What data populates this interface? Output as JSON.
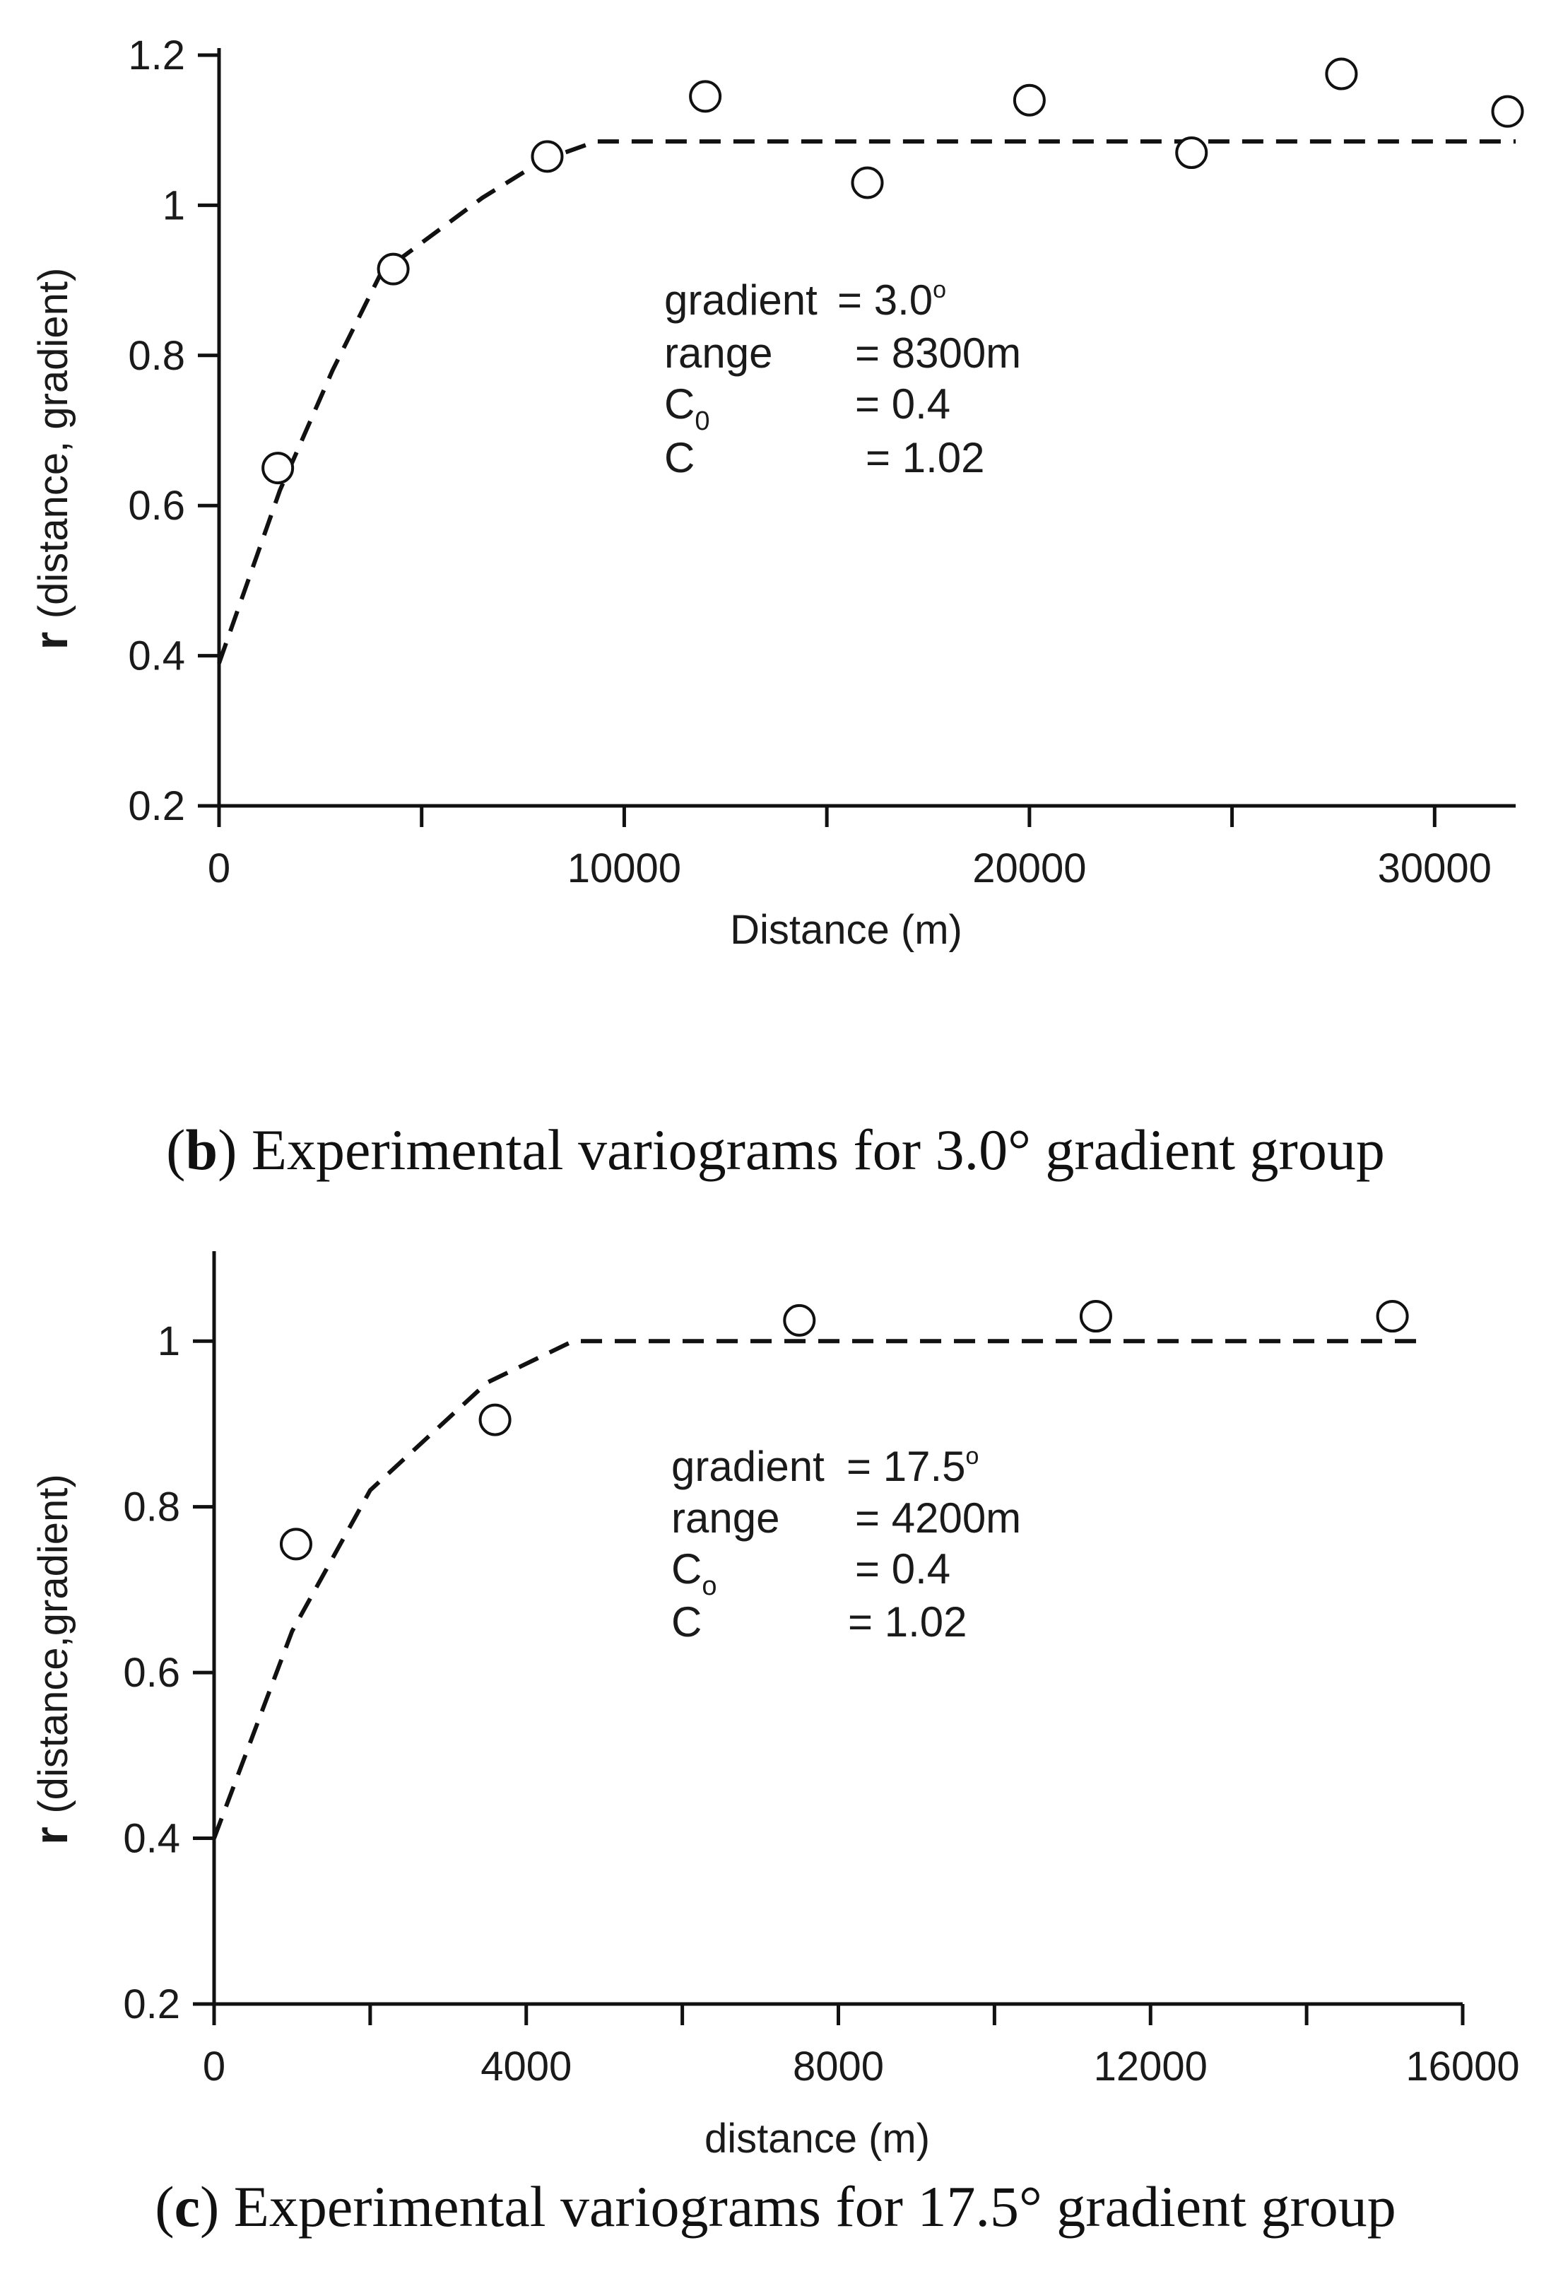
{
  "chart_data": [
    {
      "type": "scatter",
      "panel": "b",
      "caption_letter": "b",
      "caption_text": "Experimental variograms for 3.0° gradient group",
      "xlabel": "Distance (m)",
      "ylabel_bold": "r",
      "ylabel_rest": "(distance, gradient)",
      "xlim": [
        0,
        32000
      ],
      "ylim": [
        0.2,
        1.2
      ],
      "x_ticks": [
        0,
        10000,
        20000,
        30000
      ],
      "x_tick_labels": [
        "0",
        "10000",
        "20000",
        "30000"
      ],
      "x_minor_ticks": [
        5000,
        15000,
        25000
      ],
      "y_ticks": [
        0.2,
        0.4,
        0.6,
        0.8,
        1.0,
        1.2
      ],
      "y_tick_labels": [
        "0.2",
        "0.4",
        "0.6",
        "0.8",
        "1",
        "1.2"
      ],
      "series": [
        {
          "name": "experimental",
          "style": "open-circle",
          "x": [
            1450,
            4300,
            8100,
            12000,
            16000,
            20000,
            24000,
            27700,
            31800
          ],
          "y": [
            0.65,
            0.915,
            1.065,
            1.145,
            1.03,
            1.14,
            1.07,
            1.175,
            1.125
          ]
        },
        {
          "name": "model",
          "style": "dashed-line",
          "x": [
            0,
            1500,
            2800,
            4000,
            5500,
            6500,
            8000,
            9300,
            32000
          ],
          "y": [
            0.39,
            0.62,
            0.78,
            0.91,
            0.97,
            1.01,
            1.06,
            1.085,
            1.085
          ]
        }
      ],
      "annotations": [
        {
          "label": "gradient",
          "value": "= 3.0",
          "superscript": "o"
        },
        {
          "label": "range",
          "value": "= 8300m",
          "superscript": ""
        },
        {
          "label": "C",
          "subscript": "0",
          "value": "= 0.4",
          "superscript": ""
        },
        {
          "label": "C",
          "value": "= 1.02",
          "superscript": ""
        }
      ]
    },
    {
      "type": "scatter",
      "panel": "c",
      "caption_letter": "c",
      "caption_text": "Experimental variograms for 17.5° gradient group",
      "xlabel": "distance (m)",
      "ylabel_bold": "r",
      "ylabel_rest": "(distance,gradient)",
      "xlim": [
        0,
        16000
      ],
      "ylim": [
        0.2,
        1.1
      ],
      "x_ticks": [
        0,
        4000,
        8000,
        12000,
        16000
      ],
      "x_tick_labels": [
        "0",
        "4000",
        "8000",
        "12000",
        "16000"
      ],
      "x_minor_ticks": [
        2000,
        6000,
        10000,
        14000
      ],
      "y_ticks": [
        0.2,
        0.4,
        0.6,
        0.8,
        1.0
      ],
      "y_tick_labels": [
        "0.2",
        "0.4",
        "0.6",
        "0.8",
        "1"
      ],
      "series": [
        {
          "name": "experimental",
          "style": "open-circle",
          "x": [
            1050,
            3600,
            7500,
            11300,
            15100
          ],
          "y": [
            0.755,
            0.905,
            1.025,
            1.03,
            1.03
          ]
        },
        {
          "name": "model",
          "style": "dashed-line",
          "x": [
            0,
            1000,
            2000,
            3500,
            4600,
            15500
          ],
          "y": [
            0.4,
            0.65,
            0.82,
            0.95,
            1.0,
            1.0
          ]
        }
      ],
      "annotations": [
        {
          "label": "gradient",
          "value": "= 17.5",
          "superscript": "o"
        },
        {
          "label": "range",
          "value": "= 4200m",
          "superscript": ""
        },
        {
          "label": "C",
          "subscript": "o",
          "value": "= 0.4",
          "superscript": ""
        },
        {
          "label": "C",
          "value": "= 1.02",
          "superscript": ""
        }
      ]
    }
  ]
}
